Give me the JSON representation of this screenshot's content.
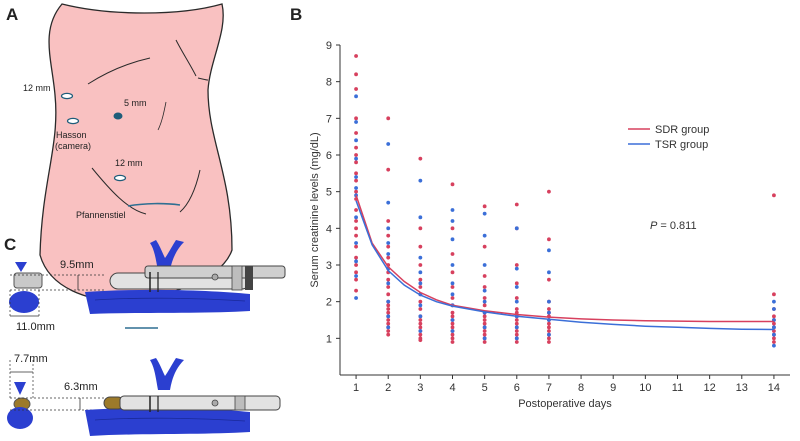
{
  "panels": {
    "a": {
      "letter": "A",
      "ports": {
        "left_12mm": "12 mm",
        "five_mm": "5 mm",
        "hasson_line1": "Hasson",
        "hasson_line2": "(camera)",
        "lower_12mm": "12 mm",
        "pfannenstiel": "Pfannenstiel"
      },
      "colors": {
        "skin": "#f9c1c1",
        "outline": "#2a2a2a",
        "port_fill": "#ffffff",
        "port_stroke": "#1f5d7a",
        "port_dark": "#1f5d7a",
        "incision": "#2f6f92"
      }
    },
    "b": {
      "letter": "B"
    },
    "c": {
      "letter": "C",
      "dims": {
        "upper_width": "9.5mm",
        "upper_diam": "11.0mm",
        "lower_diam": "7.7mm",
        "lower_width": "6.3mm"
      },
      "colors": {
        "vessel": "#2b3fd0",
        "vessel_dark": "#1a2a9a",
        "stapler": "#d8d8d8",
        "stapler_dark": "#555555",
        "tip_gold": "#9c7a2a"
      }
    }
  },
  "chart_data": {
    "type": "scatter",
    "title": "",
    "xlabel": "Postoperative days",
    "ylabel": "Serum creatinine levels (mg/dL)",
    "xlim": [
      0.5,
      14.5
    ],
    "ylim": [
      0,
      9
    ],
    "x_ticks": [
      1,
      2,
      3,
      4,
      5,
      6,
      7,
      8,
      9,
      10,
      11,
      12,
      13,
      14
    ],
    "y_ticks": [
      1,
      2,
      3,
      4,
      5,
      6,
      7,
      8,
      9
    ],
    "legend": {
      "placement": "top-right",
      "entries": [
        "SDR group",
        "TSR group"
      ]
    },
    "annotation": {
      "p_label": "P",
      "p_value": " = 0.811"
    },
    "series": [
      {
        "name": "SDR group",
        "color": "#d7405e",
        "points": [
          [
            1,
            8.7
          ],
          [
            1,
            8.2
          ],
          [
            1,
            7.8
          ],
          [
            1,
            7.0
          ],
          [
            1,
            6.6
          ],
          [
            1,
            6.2
          ],
          [
            1,
            6.0
          ],
          [
            1,
            5.8
          ],
          [
            1,
            5.5
          ],
          [
            1,
            5.3
          ],
          [
            1,
            5.0
          ],
          [
            1,
            4.8
          ],
          [
            1,
            4.5
          ],
          [
            1,
            4.2
          ],
          [
            1,
            4.0
          ],
          [
            1,
            3.8
          ],
          [
            1,
            3.5
          ],
          [
            1,
            3.2
          ],
          [
            1,
            3.0
          ],
          [
            1,
            2.8
          ],
          [
            1,
            2.6
          ],
          [
            1,
            2.3
          ],
          [
            2,
            7.0
          ],
          [
            2,
            5.6
          ],
          [
            2,
            4.2
          ],
          [
            2,
            3.8
          ],
          [
            2,
            3.5
          ],
          [
            2,
            3.2
          ],
          [
            2,
            3.0
          ],
          [
            2,
            2.8
          ],
          [
            2,
            2.6
          ],
          [
            2,
            2.4
          ],
          [
            2,
            2.2
          ],
          [
            2,
            2.0
          ],
          [
            2,
            1.9
          ],
          [
            2,
            1.8
          ],
          [
            2,
            1.7
          ],
          [
            2,
            1.6
          ],
          [
            2,
            1.5
          ],
          [
            2,
            1.4
          ],
          [
            2,
            1.3
          ],
          [
            2,
            1.2
          ],
          [
            2,
            1.1
          ],
          [
            3,
            5.9
          ],
          [
            3,
            4.0
          ],
          [
            3,
            3.5
          ],
          [
            3,
            3.0
          ],
          [
            3,
            2.6
          ],
          [
            3,
            2.4
          ],
          [
            3,
            2.2
          ],
          [
            3,
            2.0
          ],
          [
            3,
            1.8
          ],
          [
            3,
            1.6
          ],
          [
            3,
            1.5
          ],
          [
            3,
            1.4
          ],
          [
            3,
            1.3
          ],
          [
            3,
            1.2
          ],
          [
            3,
            1.1
          ],
          [
            3,
            1.0
          ],
          [
            3,
            0.95
          ],
          [
            4,
            5.2
          ],
          [
            4,
            4.0
          ],
          [
            4,
            3.3
          ],
          [
            4,
            2.8
          ],
          [
            4,
            2.4
          ],
          [
            4,
            2.1
          ],
          [
            4,
            1.9
          ],
          [
            4,
            1.7
          ],
          [
            4,
            1.6
          ],
          [
            4,
            1.5
          ],
          [
            4,
            1.4
          ],
          [
            4,
            1.3
          ],
          [
            4,
            1.2
          ],
          [
            4,
            1.1
          ],
          [
            4,
            1.0
          ],
          [
            4,
            0.9
          ],
          [
            5,
            4.6
          ],
          [
            5,
            3.5
          ],
          [
            5,
            2.7
          ],
          [
            5,
            2.4
          ],
          [
            5,
            2.1
          ],
          [
            5,
            1.9
          ],
          [
            5,
            1.7
          ],
          [
            5,
            1.6
          ],
          [
            5,
            1.5
          ],
          [
            5,
            1.4
          ],
          [
            5,
            1.3
          ],
          [
            5,
            1.2
          ],
          [
            5,
            1.1
          ],
          [
            5,
            1.0
          ],
          [
            5,
            0.9
          ],
          [
            6,
            4.65
          ],
          [
            6,
            4.0
          ],
          [
            6,
            3.0
          ],
          [
            6,
            2.5
          ],
          [
            6,
            2.1
          ],
          [
            6,
            1.8
          ],
          [
            6,
            1.7
          ],
          [
            6,
            1.6
          ],
          [
            6,
            1.5
          ],
          [
            6,
            1.4
          ],
          [
            6,
            1.3
          ],
          [
            6,
            1.2
          ],
          [
            6,
            1.1
          ],
          [
            6,
            1.0
          ],
          [
            6,
            0.9
          ],
          [
            7,
            5.0
          ],
          [
            7,
            3.7
          ],
          [
            7,
            2.6
          ],
          [
            7,
            2.0
          ],
          [
            7,
            1.8
          ],
          [
            7,
            1.7
          ],
          [
            7,
            1.6
          ],
          [
            7,
            1.5
          ],
          [
            7,
            1.4
          ],
          [
            7,
            1.3
          ],
          [
            7,
            1.2
          ],
          [
            7,
            1.1
          ],
          [
            7,
            1.0
          ],
          [
            7,
            0.9
          ],
          [
            14,
            4.9
          ],
          [
            14,
            2.2
          ],
          [
            14,
            1.8
          ],
          [
            14,
            1.6
          ],
          [
            14,
            1.5
          ],
          [
            14,
            1.4
          ],
          [
            14,
            1.3
          ],
          [
            14,
            1.2
          ],
          [
            14,
            1.1
          ],
          [
            14,
            1.0
          ],
          [
            14,
            0.9
          ]
        ],
        "trend": [
          [
            1,
            4.9
          ],
          [
            1.5,
            3.6
          ],
          [
            2,
            2.95
          ],
          [
            2.5,
            2.55
          ],
          [
            3,
            2.25
          ],
          [
            3.5,
            2.05
          ],
          [
            4,
            1.9
          ],
          [
            5,
            1.75
          ],
          [
            6,
            1.65
          ],
          [
            7,
            1.58
          ],
          [
            8,
            1.53
          ],
          [
            9,
            1.5
          ],
          [
            10,
            1.48
          ],
          [
            11,
            1.47
          ],
          [
            12,
            1.46
          ],
          [
            13,
            1.46
          ],
          [
            14,
            1.46
          ]
        ]
      },
      {
        "name": "TSR group",
        "color": "#3b6fd8",
        "points": [
          [
            1,
            7.6
          ],
          [
            1,
            6.9
          ],
          [
            1,
            6.4
          ],
          [
            1,
            5.9
          ],
          [
            1,
            5.4
          ],
          [
            1,
            5.1
          ],
          [
            1,
            4.9
          ],
          [
            1,
            4.3
          ],
          [
            1,
            3.6
          ],
          [
            1,
            3.1
          ],
          [
            1,
            2.7
          ],
          [
            1,
            2.1
          ],
          [
            2,
            6.3
          ],
          [
            2,
            4.7
          ],
          [
            2,
            4.0
          ],
          [
            2,
            3.6
          ],
          [
            2,
            3.3
          ],
          [
            2,
            2.9
          ],
          [
            2,
            2.5
          ],
          [
            2,
            2.0
          ],
          [
            2,
            1.6
          ],
          [
            2,
            1.3
          ],
          [
            3,
            5.3
          ],
          [
            3,
            4.3
          ],
          [
            3,
            3.2
          ],
          [
            3,
            2.8
          ],
          [
            3,
            2.5
          ],
          [
            3,
            2.2
          ],
          [
            3,
            1.9
          ],
          [
            3,
            1.6
          ],
          [
            3,
            1.2
          ],
          [
            4,
            4.5
          ],
          [
            4,
            4.2
          ],
          [
            4,
            3.7
          ],
          [
            4,
            3.0
          ],
          [
            4,
            2.5
          ],
          [
            4,
            2.2
          ],
          [
            4,
            1.9
          ],
          [
            4,
            1.5
          ],
          [
            4,
            1.2
          ],
          [
            5,
            4.4
          ],
          [
            5,
            3.8
          ],
          [
            5,
            3.0
          ],
          [
            5,
            2.3
          ],
          [
            5,
            2.0
          ],
          [
            5,
            1.7
          ],
          [
            5,
            1.3
          ],
          [
            5,
            1.0
          ],
          [
            6,
            4.0
          ],
          [
            6,
            2.9
          ],
          [
            6,
            2.4
          ],
          [
            6,
            2.0
          ],
          [
            6,
            1.6
          ],
          [
            6,
            1.3
          ],
          [
            6,
            1.0
          ],
          [
            7,
            3.4
          ],
          [
            7,
            2.8
          ],
          [
            7,
            2.0
          ],
          [
            7,
            1.7
          ],
          [
            7,
            1.5
          ],
          [
            7,
            1.1
          ],
          [
            14,
            2.0
          ],
          [
            14,
            1.8
          ],
          [
            14,
            1.5
          ],
          [
            14,
            1.3
          ],
          [
            14,
            1.1
          ],
          [
            14,
            0.8
          ]
        ],
        "trend": [
          [
            1,
            4.75
          ],
          [
            1.5,
            3.55
          ],
          [
            2,
            2.85
          ],
          [
            2.5,
            2.45
          ],
          [
            3,
            2.18
          ],
          [
            3.5,
            2.0
          ],
          [
            4,
            1.88
          ],
          [
            5,
            1.72
          ],
          [
            6,
            1.6
          ],
          [
            7,
            1.52
          ],
          [
            8,
            1.44
          ],
          [
            9,
            1.38
          ],
          [
            10,
            1.33
          ],
          [
            11,
            1.3
          ],
          [
            12,
            1.27
          ],
          [
            13,
            1.25
          ],
          [
            14,
            1.24
          ]
        ]
      }
    ]
  }
}
